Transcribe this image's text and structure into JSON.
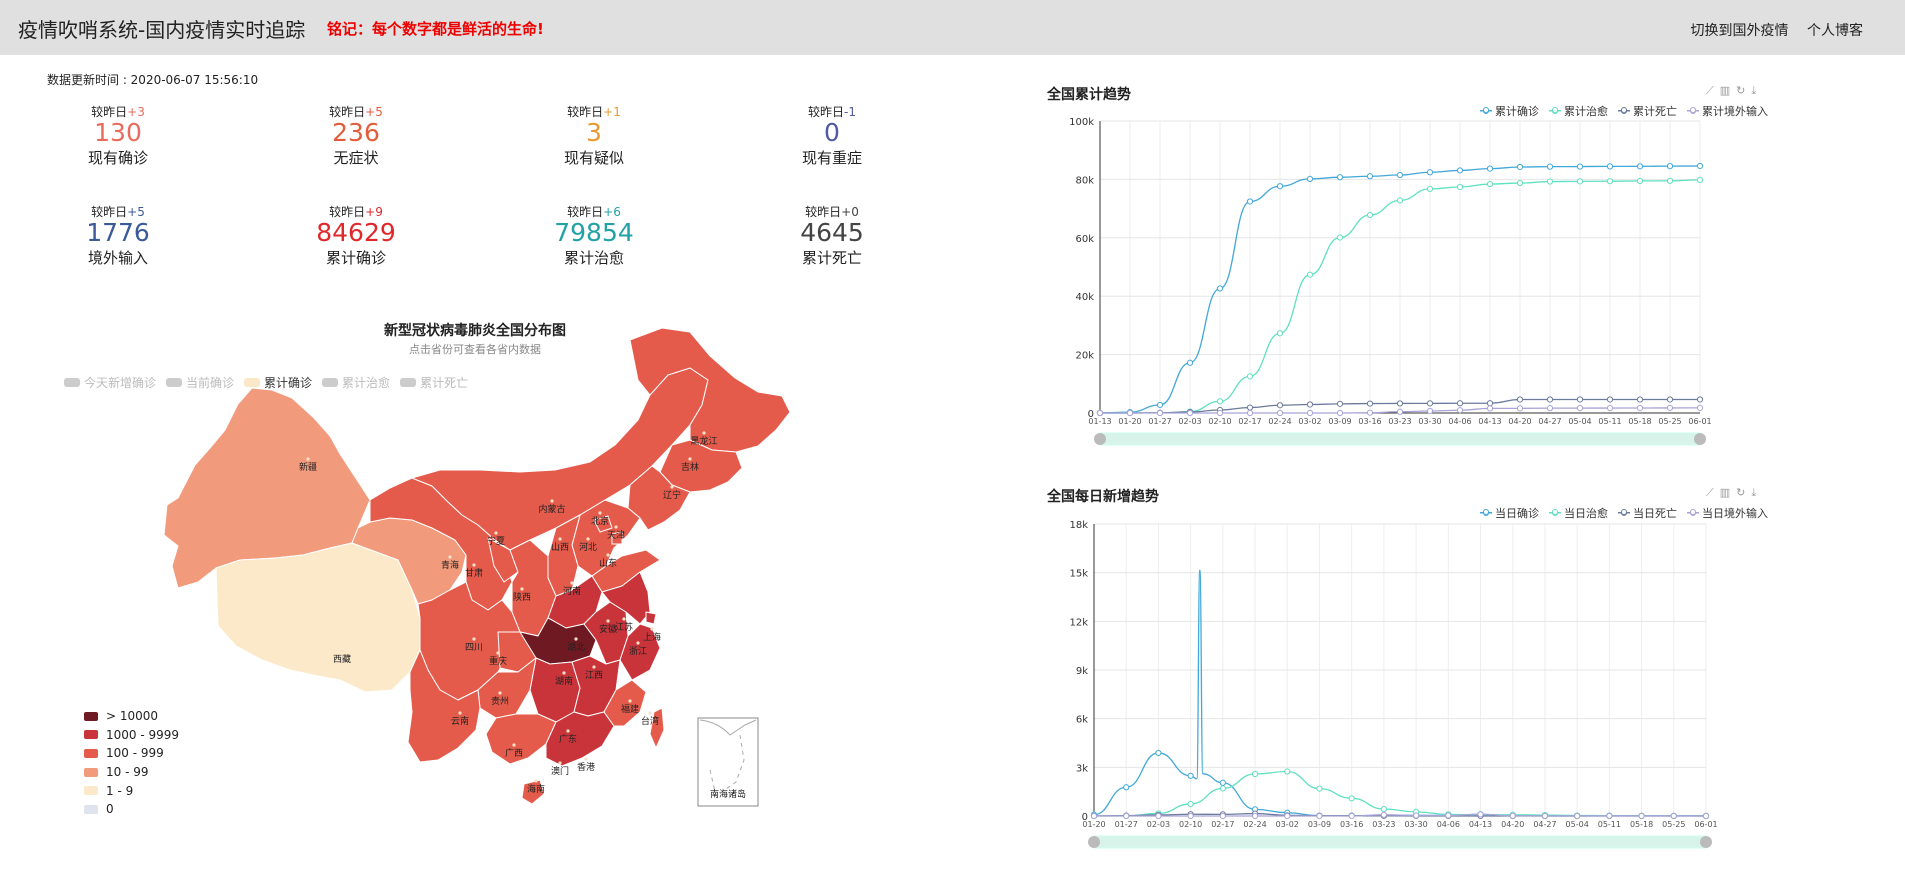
{
  "header": {
    "title": "疫情吹哨系统-国内疫情实时追踪",
    "motto": "铭记：每个数字都是鲜活的生命!",
    "links": [
      "切换到国外疫情",
      "个人博客"
    ]
  },
  "update_time": "数据更新时间 : 2020-06-07 15:56:10",
  "stats": [
    {
      "label": "现有确诊",
      "value": "130",
      "delta_prefix": "较昨日",
      "delta": "+3",
      "color": "#e96b5d"
    },
    {
      "label": "无症状",
      "value": "236",
      "delta_prefix": "较昨日",
      "delta": "+5",
      "color": "#e35d3d"
    },
    {
      "label": "现有疑似",
      "value": "3",
      "delta_prefix": "较昨日",
      "delta": "+1",
      "color": "#e89a2f"
    },
    {
      "label": "现有重症",
      "value": "0",
      "delta_prefix": "较昨日",
      "delta": "-1",
      "color": "#4f5aa6"
    },
    {
      "label": "境外输入",
      "value": "1776",
      "delta_prefix": "较昨日",
      "delta": "+5",
      "color": "#3b5a9a"
    },
    {
      "label": "累计确诊",
      "value": "84629",
      "delta_prefix": "较昨日",
      "delta": "+9",
      "color": "#e0282a"
    },
    {
      "label": "累计治愈",
      "value": "79854",
      "delta_prefix": "较昨日",
      "delta": "+6",
      "color": "#22a2a7"
    },
    {
      "label": "累计死亡",
      "value": "4645",
      "delta_prefix": "较昨日",
      "delta": "+0",
      "color": "#444444"
    }
  ],
  "map": {
    "title": "新型冠状病毒肺炎全国分布图",
    "subtitle": "点击省份可查看各省内数据",
    "legend": [
      "今天新增确诊",
      "当前确诊",
      "累计确诊",
      "累计治愈",
      "累计死亡"
    ],
    "active_legend": "累计确诊",
    "ranges": [
      {
        "label": "> 10000",
        "color": "#6f1a22"
      },
      {
        "label": "1000 - 9999",
        "color": "#c9343a"
      },
      {
        "label": "100 - 999",
        "color": "#e55b4b"
      },
      {
        "label": "10 - 99",
        "color": "#f29a7c"
      },
      {
        "label": "1 - 9",
        "color": "#fce9ca"
      },
      {
        "label": "0",
        "color": "#dfe4ec"
      }
    ],
    "provinces": [
      "新疆",
      "西藏",
      "青海",
      "甘肃",
      "宁夏",
      "内蒙古",
      "黑龙江",
      "吉林",
      "辽宁",
      "北京",
      "天津",
      "河北",
      "山西",
      "山东",
      "陕西",
      "河南",
      "四川",
      "重庆",
      "湖北",
      "安徽",
      "江苏",
      "上海",
      "浙江",
      "湖南",
      "江西",
      "贵州",
      "云南",
      "福建",
      "台湾",
      "广西",
      "广东",
      "香港",
      "澳门",
      "海南"
    ],
    "nanhai_label": "南海诸岛"
  },
  "chart_data": [
    {
      "type": "line",
      "title": "全国累计趋势",
      "x": [
        "01-13",
        "01-20",
        "01-27",
        "02-03",
        "02-10",
        "02-17",
        "02-24",
        "03-02",
        "03-09",
        "03-16",
        "03-23",
        "03-30",
        "04-06",
        "04-13",
        "04-20",
        "04-27",
        "05-04",
        "05-11",
        "05-18",
        "05-25",
        "06-01"
      ],
      "y_ticks": [
        "0",
        "20k",
        "40k",
        "60k",
        "80k",
        "100k"
      ],
      "ylim": [
        0,
        100000
      ],
      "series": [
        {
          "name": "累计确诊",
          "color": "#41a8d8",
          "values": [
            41,
            291,
            2744,
            17205,
            42638,
            72436,
            77658,
            80174,
            80754,
            81077,
            81498,
            82447,
            83071,
            83696,
            84250,
            84369,
            84404,
            84458,
            84487,
            84547,
            84597
          ]
        },
        {
          "name": "累计治愈",
          "color": "#5fe0c1",
          "values": [
            0,
            25,
            51,
            475,
            3996,
            12552,
            27323,
            47367,
            60106,
            67799,
            72814,
            76751,
            77410,
            78401,
            78745,
            79266,
            79333,
            79393,
            79479,
            79517,
            79830
          ]
        },
        {
          "name": "累计死亡",
          "color": "#6c7a9c",
          "values": [
            1,
            6,
            80,
            361,
            1016,
            1868,
            2663,
            2915,
            3136,
            3226,
            3274,
            3304,
            3331,
            3345,
            4632,
            4633,
            4633,
            4633,
            4634,
            4634,
            4634
          ]
        },
        {
          "name": "累计境外输入",
          "color": "#a8a3d8",
          "values": [
            0,
            0,
            0,
            0,
            0,
            0,
            0,
            0,
            0,
            111,
            427,
            693,
            951,
            1575,
            1596,
            1663,
            1680,
            1698,
            1714,
            1741,
            1762
          ]
        }
      ],
      "legend_position": "top-right"
    },
    {
      "type": "line",
      "title": "全国每日新增趋势",
      "x": [
        "01-20",
        "01-27",
        "02-03",
        "02-10",
        "02-17",
        "02-24",
        "03-02",
        "03-09",
        "03-16",
        "03-23",
        "03-30",
        "04-06",
        "04-13",
        "04-20",
        "04-27",
        "05-04",
        "05-11",
        "05-18",
        "05-25",
        "06-01"
      ],
      "y_ticks": [
        "0",
        "3k",
        "6k",
        "9k",
        "12k",
        "15k",
        "18k"
      ],
      "ylim": [
        0,
        18000
      ],
      "series": [
        {
          "name": "当日确诊",
          "color": "#41a8d8",
          "values": [
            77,
            1771,
            3886,
            2478,
            2048,
            409,
            202,
            19,
            21,
            39,
            48,
            32,
            108,
            11,
            6,
            3,
            17,
            6,
            7,
            5
          ]
        },
        {
          "name": "当日治愈",
          "color": "#5fe0c1",
          "values": [
            0,
            9,
            157,
            744,
            1701,
            2589,
            2742,
            1689,
            1091,
            427,
            255,
            100,
            74,
            76,
            59,
            33,
            20,
            12,
            8,
            6
          ]
        },
        {
          "name": "当日死亡",
          "color": "#6c7a9c",
          "values": [
            3,
            24,
            64,
            108,
            100,
            150,
            42,
            17,
            14,
            9,
            4,
            2,
            2,
            0,
            0,
            0,
            0,
            0,
            0,
            0
          ]
        },
        {
          "name": "当日境外输入",
          "color": "#a8a3d8",
          "values": [
            0,
            0,
            0,
            0,
            0,
            0,
            0,
            0,
            1,
            74,
            31,
            32,
            98,
            8,
            5,
            2,
            5,
            2,
            3,
            2
          ]
        }
      ],
      "spike": {
        "date": "02-12",
        "value": 15152
      },
      "legend_position": "top-right"
    }
  ]
}
